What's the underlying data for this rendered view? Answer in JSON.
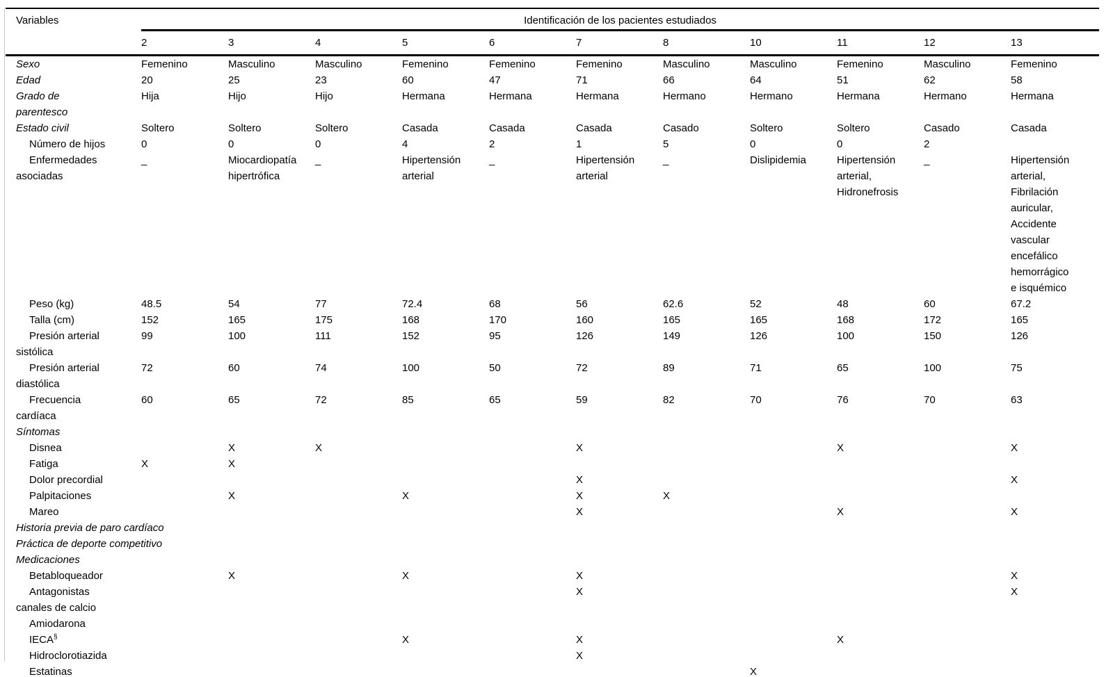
{
  "table": {
    "corner_label": "Variables",
    "group_header": "Identificación de los pacientes estudiados",
    "columns": [
      "2",
      "3",
      "4",
      "5",
      "6",
      "7",
      "8",
      "10",
      "11",
      "12",
      "13"
    ],
    "rows": [
      {
        "label": "Sexo",
        "style": "section",
        "values": [
          "Femenino",
          "Masculino",
          "Masculino",
          "Femenino",
          "Femenino",
          "Femenino",
          "Masculino",
          "Masculino",
          "Femenino",
          "Masculino",
          "Femenino"
        ]
      },
      {
        "label": "Edad",
        "style": "section",
        "values": [
          "20",
          "25",
          "23",
          "60",
          "47",
          "71",
          "66",
          "64",
          "51",
          "62",
          "58"
        ]
      },
      {
        "label": "Grado de parentesco",
        "label_lines": [
          "Grado de",
          "parentesco"
        ],
        "style": "section",
        "values": [
          "Hija",
          "Hijo",
          "Hijo",
          "Hermana",
          "Hermana",
          "Hermana",
          "Hermano",
          "Hermano",
          "Hermana",
          "Hermano",
          "Hermana"
        ]
      },
      {
        "label": "Estado civil",
        "style": "section",
        "values": [
          "Soltero",
          "Soltero",
          "Soltero",
          "Casada",
          "Casada",
          "Casada",
          "Casado",
          "Soltero",
          "Soltero",
          "Casado",
          "Casada"
        ]
      },
      {
        "label": "Número de hijos",
        "style": "item",
        "values": [
          "0",
          "0",
          "0",
          "4",
          "2",
          "1",
          "5",
          "0",
          "0",
          "2",
          ""
        ]
      },
      {
        "label": "Enfermedades asociadas",
        "style": "item",
        "values": [
          "_",
          "Miocardiopatía hipertrófica",
          "_",
          "Hipertensión arterial",
          "_",
          "Hipertensión arterial",
          "_",
          "Dislipidemia",
          "Hipertensión arterial, Hidronefrosis",
          "_",
          "Hipertensión arterial, Fibrilación auricular, Accidente vascular encefálico hemorrágico e isquémico"
        ]
      },
      {
        "label": "Peso (kg)",
        "style": "item",
        "values": [
          "48.5",
          "54",
          "77",
          "72.4",
          "68",
          "56",
          "62.6",
          "52",
          "48",
          "60",
          "67.2"
        ]
      },
      {
        "label": "Talla (cm)",
        "style": "item",
        "values": [
          "152",
          "165",
          "175",
          "168",
          "170",
          "160",
          "165",
          "165",
          "168",
          "172",
          "165"
        ]
      },
      {
        "label": "Presión arterial sistólica",
        "style": "item",
        "values": [
          "99",
          "100",
          "111",
          "152",
          "95",
          "126",
          "149",
          "126",
          "100",
          "150",
          "126"
        ]
      },
      {
        "label": "Presión arterial diastólica",
        "style": "item",
        "values": [
          "72",
          "60",
          "74",
          "100",
          "50",
          "72",
          "89",
          "71",
          "65",
          "100",
          "75"
        ]
      },
      {
        "label": "Frecuencia cardíaca",
        "style": "item",
        "values": [
          "60",
          "65",
          "72",
          "85",
          "65",
          "59",
          "82",
          "70",
          "76",
          "70",
          "63"
        ]
      },
      {
        "label": "Síntomas",
        "style": "section",
        "values": []
      },
      {
        "label": "Disnea",
        "style": "item",
        "values": [
          "",
          "X",
          "X",
          "",
          "",
          "X",
          "",
          "",
          "X",
          "",
          "X"
        ]
      },
      {
        "label": "Fatiga",
        "style": "item",
        "values": [
          "X",
          "X",
          "",
          "",
          "",
          "",
          "",
          "",
          "",
          "",
          ""
        ]
      },
      {
        "label": "Dolor precordial",
        "style": "item",
        "values": [
          "",
          "",
          "",
          "",
          "",
          "X",
          "",
          "",
          "",
          "",
          "X"
        ]
      },
      {
        "label": "Palpitaciones",
        "style": "item",
        "values": [
          "",
          "X",
          "",
          "X",
          "",
          "X",
          "X",
          "",
          "",
          "",
          ""
        ]
      },
      {
        "label": "Mareo",
        "style": "item",
        "values": [
          "",
          "",
          "",
          "",
          "",
          "X",
          "",
          "",
          "X",
          "",
          "X"
        ]
      },
      {
        "label": "Historia previa de paro cardíaco",
        "style": "section",
        "values": []
      },
      {
        "label": "Práctica de deporte competitivo",
        "style": "section",
        "values": []
      },
      {
        "label": "Medicaciones",
        "style": "section",
        "values": []
      },
      {
        "label": "Betabloqueador",
        "style": "item",
        "values": [
          "",
          "X",
          "",
          "X",
          "",
          "X",
          "",
          "",
          "",
          "",
          "X"
        ]
      },
      {
        "label": "Antagonistas canales de calcio",
        "style": "item",
        "values": [
          "",
          "",
          "",
          "",
          "",
          "X",
          "",
          "",
          "",
          "",
          "X"
        ]
      },
      {
        "label": "Amiodarona",
        "style": "item",
        "values": [
          "",
          "",
          "",
          "",
          "",
          "",
          "",
          "",
          "",
          "",
          ""
        ]
      },
      {
        "label": "IECA",
        "label_sup": "§",
        "style": "item",
        "values": [
          "",
          "",
          "",
          "X",
          "",
          "X",
          "",
          "",
          "X",
          "",
          ""
        ]
      },
      {
        "label": "Hidroclorotiazida",
        "style": "item",
        "values": [
          "",
          "",
          "",
          "",
          "",
          "X",
          "",
          "",
          "",
          "",
          ""
        ]
      },
      {
        "label": "Estatinas",
        "style": "item",
        "values": [
          "",
          "",
          "",
          "",
          "",
          "",
          "",
          "X",
          "",
          "",
          ""
        ]
      }
    ]
  }
}
